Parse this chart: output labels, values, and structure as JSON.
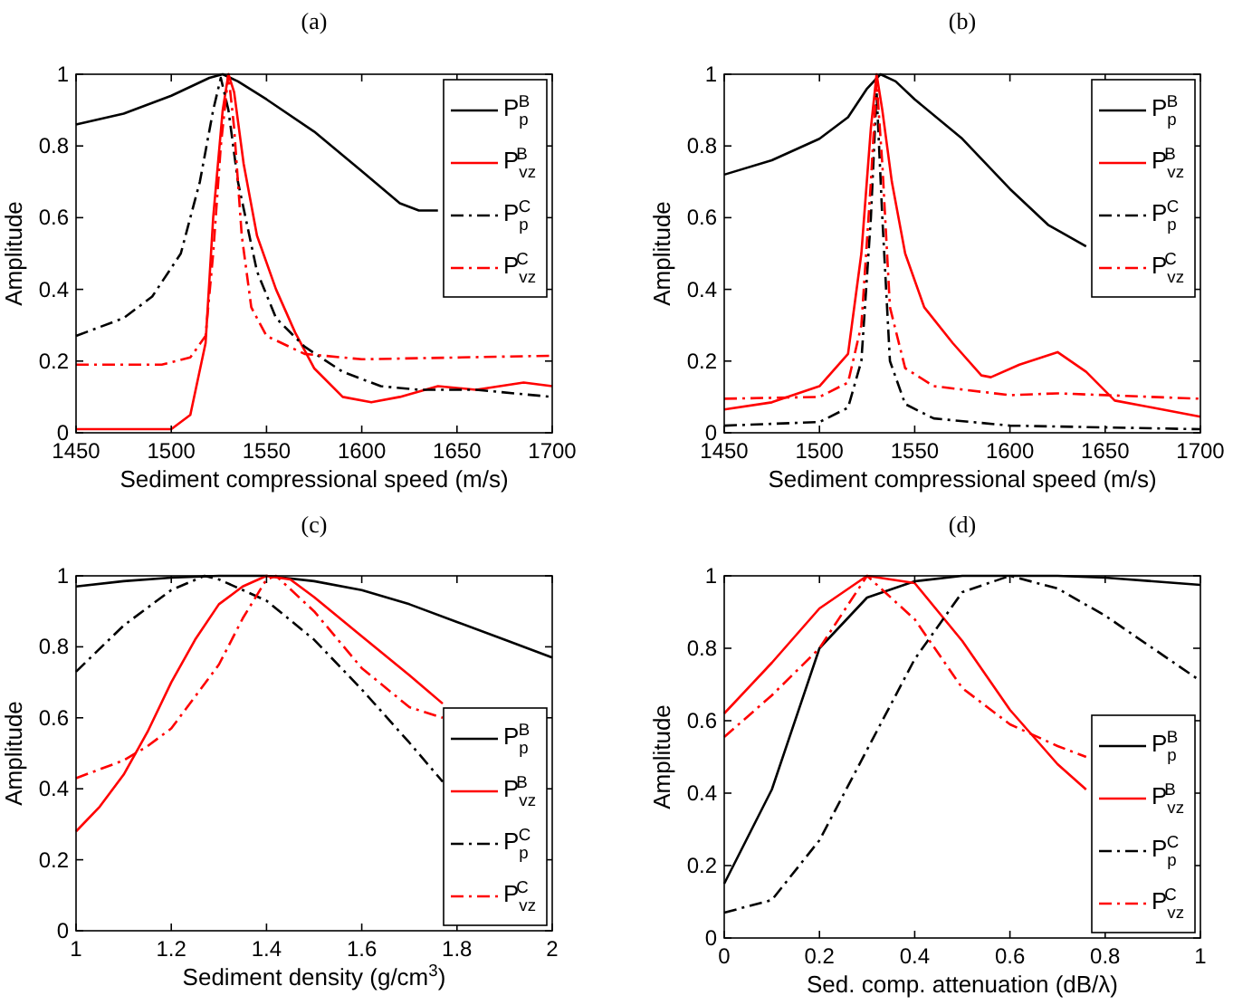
{
  "chart_data": [
    {
      "type": "line",
      "title": "(a)",
      "xlabel": "Sediment compressional speed (m/s)",
      "ylabel": "Amplitude",
      "xlim": [
        1450,
        1700
      ],
      "ylim": [
        0,
        1
      ],
      "xticks": [
        1450,
        1500,
        1550,
        1600,
        1650,
        1700
      ],
      "yticks": [
        0,
        0.2,
        0.4,
        0.6,
        0.8,
        1
      ],
      "grid": false,
      "legend": "top right",
      "marker": "none",
      "series": [
        {
          "name": "P$_{p}$$^{B}$",
          "color": "#000000",
          "line_style": "solid",
          "x": [
            1450,
            1475,
            1500,
            1520,
            1527,
            1535,
            1550,
            1575,
            1600,
            1620,
            1630,
            1640
          ],
          "values": [
            0.86,
            0.89,
            0.94,
            0.99,
            1.0,
            0.98,
            0.93,
            0.84,
            0.73,
            0.64,
            0.62,
            0.62
          ]
        },
        {
          "name": "P$_{vz}$$^{B}$",
          "color": "#ff0000",
          "line_style": "solid",
          "x": [
            1450,
            1500,
            1510,
            1518,
            1522,
            1527,
            1530,
            1533,
            1538,
            1545,
            1555,
            1565,
            1575,
            1590,
            1605,
            1620,
            1640,
            1660,
            1685,
            1700
          ],
          "values": [
            0.01,
            0.01,
            0.05,
            0.25,
            0.6,
            0.9,
            1.0,
            0.95,
            0.75,
            0.55,
            0.4,
            0.28,
            0.18,
            0.1,
            0.085,
            0.1,
            0.13,
            0.12,
            0.14,
            0.13
          ]
        },
        {
          "name": "P$_{p}$$^{C}$",
          "color": "#000000",
          "line_style": "dashdot",
          "x": [
            1450,
            1475,
            1490,
            1505,
            1515,
            1522,
            1526,
            1530,
            1535,
            1545,
            1555,
            1570,
            1590,
            1610,
            1630,
            1660,
            1700
          ],
          "values": [
            0.27,
            0.32,
            0.38,
            0.5,
            0.7,
            0.9,
            0.99,
            0.9,
            0.7,
            0.45,
            0.32,
            0.24,
            0.17,
            0.13,
            0.12,
            0.12,
            0.1
          ]
        },
        {
          "name": "P$_{vz}$$^{C}$",
          "color": "#ff0000",
          "line_style": "dashdot",
          "x": [
            1450,
            1495,
            1510,
            1518,
            1522,
            1526,
            1530,
            1533,
            1537,
            1542,
            1550,
            1570,
            1600,
            1650,
            1700
          ],
          "values": [
            0.19,
            0.19,
            0.21,
            0.27,
            0.5,
            0.8,
            1.0,
            0.85,
            0.55,
            0.35,
            0.27,
            0.22,
            0.205,
            0.21,
            0.215
          ]
        }
      ]
    },
    {
      "type": "line",
      "title": "(b)",
      "xlabel": "Sediment compressional speed (m/s)",
      "ylabel": "Amplitude",
      "xlim": [
        1450,
        1700
      ],
      "ylim": [
        0,
        1
      ],
      "xticks": [
        1450,
        1500,
        1550,
        1600,
        1650,
        1700
      ],
      "yticks": [
        0,
        0.2,
        0.4,
        0.6,
        0.8,
        1
      ],
      "grid": false,
      "legend": "top right",
      "marker": "none",
      "series": [
        {
          "name": "P$_{p}$$^{B}$",
          "color": "#000000",
          "line_style": "solid",
          "x": [
            1450,
            1475,
            1500,
            1515,
            1525,
            1532,
            1540,
            1550,
            1575,
            1600,
            1620,
            1640
          ],
          "values": [
            0.72,
            0.76,
            0.82,
            0.88,
            0.96,
            1.0,
            0.98,
            0.93,
            0.82,
            0.68,
            0.58,
            0.52
          ]
        },
        {
          "name": "P$_{vz}$$^{B}$",
          "color": "#ff0000",
          "line_style": "solid",
          "x": [
            1450,
            1475,
            1500,
            1515,
            1522,
            1527,
            1530,
            1533,
            1538,
            1545,
            1555,
            1570,
            1585,
            1590,
            1605,
            1625,
            1640,
            1655,
            1675,
            1700
          ],
          "values": [
            0.065,
            0.085,
            0.13,
            0.22,
            0.5,
            0.85,
            1.0,
            0.9,
            0.7,
            0.5,
            0.35,
            0.25,
            0.16,
            0.155,
            0.19,
            0.225,
            0.17,
            0.09,
            0.07,
            0.045
          ]
        },
        {
          "name": "P$_{p}$$^{C}$",
          "color": "#000000",
          "line_style": "dashdot",
          "x": [
            1450,
            1500,
            1515,
            1522,
            1527,
            1530,
            1533,
            1537,
            1545,
            1560,
            1600,
            1650,
            1700
          ],
          "values": [
            0.02,
            0.03,
            0.07,
            0.2,
            0.6,
            0.95,
            0.6,
            0.2,
            0.08,
            0.04,
            0.02,
            0.015,
            0.01
          ]
        },
        {
          "name": "P$_{vz}$$^{C}$",
          "color": "#ff0000",
          "line_style": "dashdot",
          "x": [
            1450,
            1500,
            1515,
            1522,
            1527,
            1530,
            1533,
            1537,
            1545,
            1560,
            1600,
            1625,
            1650,
            1700
          ],
          "values": [
            0.095,
            0.1,
            0.14,
            0.3,
            0.7,
            0.98,
            0.75,
            0.35,
            0.18,
            0.13,
            0.105,
            0.11,
            0.105,
            0.095
          ]
        }
      ]
    },
    {
      "type": "line",
      "title": "(c)",
      "xlabel": "Sediment density (g/cm$^{3}$)",
      "ylabel": "Amplitude",
      "xlim": [
        1,
        2
      ],
      "ylim": [
        0,
        1
      ],
      "xticks": [
        1,
        1.2,
        1.4,
        1.6,
        1.8,
        2
      ],
      "yticks": [
        0,
        0.2,
        0.4,
        0.6,
        0.8,
        1
      ],
      "grid": false,
      "legend": "bottom right",
      "marker": "none",
      "series": [
        {
          "name": "P$_{p}$$^{B}$",
          "color": "#000000",
          "line_style": "solid",
          "x": [
            1,
            1.1,
            1.2,
            1.3,
            1.4,
            1.5,
            1.6,
            1.7,
            1.8,
            1.9,
            2
          ],
          "values": [
            0.97,
            0.985,
            0.995,
            1.0,
            1.0,
            0.985,
            0.96,
            0.92,
            0.87,
            0.82,
            0.77
          ]
        },
        {
          "name": "P$_{vz}$$^{B}$",
          "color": "#ff0000",
          "line_style": "solid",
          "x": [
            1,
            1.05,
            1.1,
            1.15,
            1.2,
            1.25,
            1.3,
            1.35,
            1.4,
            1.45,
            1.5,
            1.6,
            1.7,
            1.77
          ],
          "values": [
            0.28,
            0.35,
            0.44,
            0.56,
            0.7,
            0.82,
            0.92,
            0.97,
            1.0,
            0.99,
            0.94,
            0.83,
            0.72,
            0.64
          ]
        },
        {
          "name": "P$_{p}$$^{C}$",
          "color": "#000000",
          "line_style": "dashdot",
          "x": [
            1,
            1.1,
            1.2,
            1.27,
            1.3,
            1.4,
            1.5,
            1.6,
            1.7,
            1.77
          ],
          "values": [
            0.73,
            0.86,
            0.96,
            1.0,
            0.99,
            0.93,
            0.82,
            0.68,
            0.53,
            0.42
          ]
        },
        {
          "name": "P$_{vz}$$^{C}$",
          "color": "#ff0000",
          "line_style": "dashdot",
          "x": [
            1,
            1.1,
            1.15,
            1.2,
            1.3,
            1.35,
            1.4,
            1.42,
            1.5,
            1.6,
            1.7,
            1.77
          ],
          "values": [
            0.43,
            0.48,
            0.52,
            0.57,
            0.75,
            0.88,
            0.99,
            1.0,
            0.9,
            0.74,
            0.63,
            0.6
          ]
        }
      ]
    },
    {
      "type": "line",
      "title": "(d)",
      "xlabel": "Sed. comp. attenuation (dB/λ)",
      "ylabel": "Amplitude",
      "xlim": [
        0,
        1
      ],
      "ylim": [
        0,
        1
      ],
      "xticks": [
        0,
        0.2,
        0.4,
        0.6,
        0.8,
        1
      ],
      "yticks": [
        0,
        0.2,
        0.4,
        0.6,
        0.8,
        1
      ],
      "grid": false,
      "legend": "bottom right",
      "marker": "none",
      "series": [
        {
          "name": "P$_{p}$$^{B}$",
          "color": "#000000",
          "line_style": "solid",
          "x": [
            0,
            0.1,
            0.2,
            0.3,
            0.4,
            0.5,
            0.6,
            0.7,
            0.8,
            0.9,
            1
          ],
          "values": [
            0.15,
            0.41,
            0.8,
            0.94,
            0.985,
            1.0,
            1.0,
            1.0,
            0.995,
            0.985,
            0.975
          ]
        },
        {
          "name": "P$_{vz}$$^{B}$",
          "color": "#ff0000",
          "line_style": "solid",
          "x": [
            0,
            0.1,
            0.2,
            0.3,
            0.4,
            0.5,
            0.6,
            0.7,
            0.76
          ],
          "values": [
            0.62,
            0.76,
            0.91,
            1.0,
            0.98,
            0.82,
            0.63,
            0.48,
            0.41
          ]
        },
        {
          "name": "P$_{p}$$^{C}$",
          "color": "#000000",
          "line_style": "dashdot",
          "x": [
            0,
            0.1,
            0.2,
            0.3,
            0.4,
            0.5,
            0.6,
            0.7,
            0.8,
            0.9,
            1
          ],
          "values": [
            0.07,
            0.105,
            0.27,
            0.52,
            0.77,
            0.955,
            1.0,
            0.965,
            0.89,
            0.8,
            0.71
          ]
        },
        {
          "name": "P$_{vz}$$^{C}$",
          "color": "#ff0000",
          "line_style": "dashdot",
          "x": [
            0,
            0.1,
            0.2,
            0.3,
            0.4,
            0.5,
            0.6,
            0.7,
            0.76
          ],
          "values": [
            0.555,
            0.67,
            0.8,
            1.0,
            0.88,
            0.69,
            0.59,
            0.53,
            0.5
          ]
        }
      ]
    }
  ]
}
